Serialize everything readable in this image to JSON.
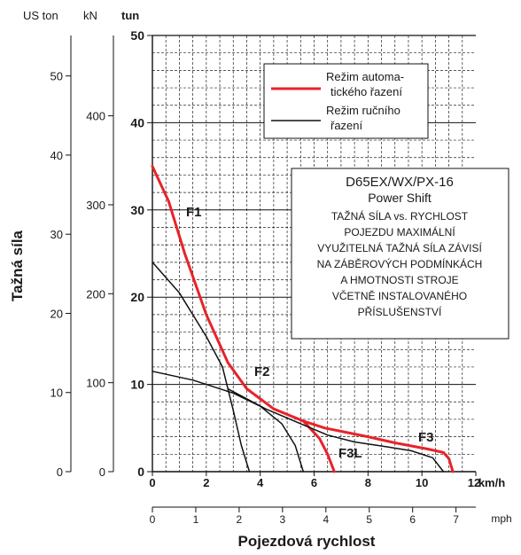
{
  "chart_data": {
    "type": "line",
    "title": "D65EX/WX/PX-16",
    "subtitle": "Power Shift",
    "notes": [
      "TAŽNÁ SÍLA vs. RYCHLOST",
      "POJEZDU MAXIMÁLNÍ",
      "VYUŽITELNÁ TAŽNÁ SÍLA ZÁVISÍ",
      "NA ZÁBĚROVÝCH PODMÍNKÁCH",
      "A HMOTNOSTI STROJE",
      "VČETNĚ INSTALOVANÉHO",
      "PŘÍSLUŠENSTVÍ"
    ],
    "ylabel": "Tažná síla",
    "xlabel": "Pojezdová rychlost",
    "y_unit_tun": "tun",
    "y_unit_kn": "kN",
    "y_unit_uston": "US ton",
    "x_unit_kmh": "km/h",
    "x_unit_mph": "mph",
    "ylim": [
      0,
      50
    ],
    "xlim": [
      0,
      12
    ],
    "grid": true,
    "y_ticks_tun": [
      "0",
      "10",
      "20",
      "30",
      "40",
      "50"
    ],
    "y_ticks_kn": [
      "0",
      "100",
      "200",
      "300",
      "400"
    ],
    "y_ticks_uston": [
      "0",
      "10",
      "20",
      "30",
      "40",
      "50"
    ],
    "x_ticks_kmh": [
      "0",
      "2",
      "4",
      "6",
      "8",
      "10",
      "12"
    ],
    "x_ticks_mph": [
      "0",
      "1",
      "2",
      "3",
      "4",
      "5",
      "6",
      "7"
    ],
    "gear_labels": [
      "F1",
      "F2",
      "F3L",
      "F3"
    ],
    "legend": {
      "position": "top-right",
      "auto_label_1": "Režim automa-",
      "auto_label_2": "tického řazení",
      "manual_label_1": "Režim ručního",
      "manual_label_2": "řazení"
    },
    "series": [
      {
        "name": "Režim automatického řazení",
        "color": "#e8232a",
        "segments": [
          [
            [
              0,
              35
            ],
            [
              0.6,
              31
            ],
            [
              1.2,
              25
            ],
            [
              2.0,
              18
            ],
            [
              2.8,
              12.5
            ],
            [
              3.5,
              9.5
            ],
            [
              4.5,
              7.2
            ],
            [
              5.6,
              5.8
            ],
            [
              6.4,
              5.0
            ],
            [
              8.0,
              4.0
            ],
            [
              9.0,
              3.3
            ],
            [
              10.2,
              2.6
            ],
            [
              10.8,
              2.2
            ],
            [
              11.0,
              1.5
            ],
            [
              11.15,
              0
            ]
          ],
          [
            [
              5.6,
              5.8
            ],
            [
              6.2,
              3.8
            ],
            [
              6.5,
              2.0
            ],
            [
              6.75,
              0
            ]
          ]
        ]
      },
      {
        "name": "Režim ručního řazení",
        "color": "#111111",
        "segments": [
          [
            [
              0,
              24
            ],
            [
              1.0,
              20.5
            ],
            [
              2.0,
              15.5
            ],
            [
              2.6,
              12.0
            ],
            [
              3.0,
              7.0
            ],
            [
              3.3,
              3.0
            ],
            [
              3.6,
              0
            ]
          ],
          [
            [
              0,
              11.5
            ],
            [
              1.5,
              10.5
            ],
            [
              3.0,
              9.0
            ],
            [
              4.0,
              7.5
            ],
            [
              4.8,
              5.5
            ],
            [
              5.3,
              3.0
            ],
            [
              5.6,
              0
            ]
          ],
          [
            [
              2.8,
              9.5
            ],
            [
              4.2,
              7.2
            ],
            [
              5.5,
              5.5
            ],
            [
              6.5,
              4.2
            ],
            [
              7.5,
              3.4
            ],
            [
              8.6,
              2.9
            ],
            [
              9.6,
              2.4
            ],
            [
              10.4,
              1.6
            ],
            [
              10.8,
              0
            ]
          ]
        ]
      }
    ]
  }
}
